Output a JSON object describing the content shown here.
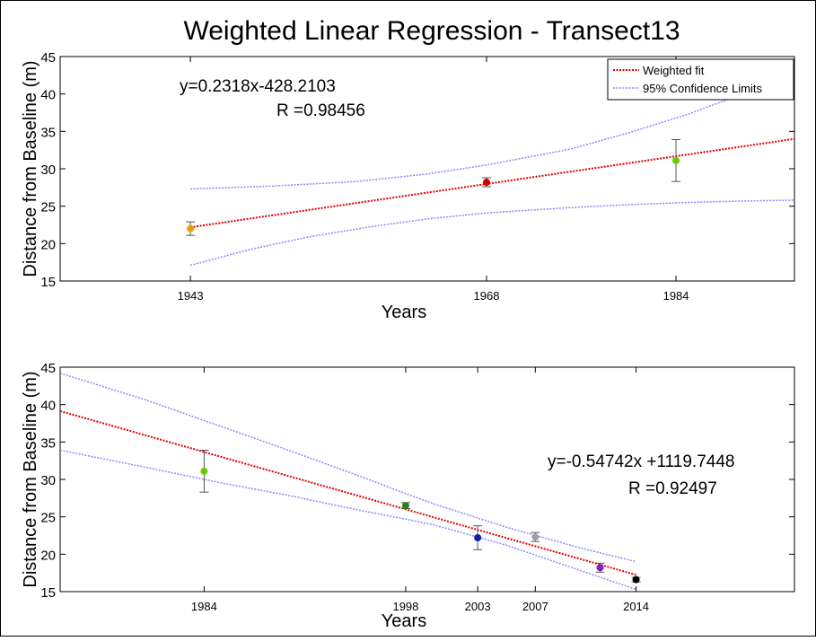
{
  "figure": {
    "title": "Weighted Linear Regression - Transect13"
  },
  "chart_data": [
    {
      "type": "scatter",
      "title": "Weighted Linear Regression - Transect13",
      "xlabel": "Years",
      "ylabel": "Distance from Baseline (m)",
      "xlim": [
        1932,
        1994
      ],
      "ylim": [
        15,
        45
      ],
      "xticks": [
        1943,
        1968,
        1984
      ],
      "yticks": [
        15,
        20,
        25,
        30,
        35,
        40,
        45
      ],
      "grid": false,
      "legend": {
        "placement": "top-right",
        "entries": [
          "Weighted fit",
          "95% Confidence Limits"
        ]
      },
      "equation_text": "y=0.2318x-428.2103",
      "r_text": "R =0.98456",
      "points": [
        {
          "x": 1943,
          "y": 22.0,
          "err": 0.9,
          "color": "#e8a000"
        },
        {
          "x": 1968,
          "y": 28.2,
          "err": 0.6,
          "color": "#d40000"
        },
        {
          "x": 1984,
          "y": 31.1,
          "err": 2.8,
          "color": "#66cc00"
        }
      ],
      "fit": {
        "slope": 0.2318,
        "intercept": -428.2103,
        "x": [
          1943,
          1994
        ],
        "color": "#e00000"
      },
      "confidence_limits": {
        "color": "#8888ff",
        "upper": [
          [
            1943,
            27.3
          ],
          [
            1950,
            27.7
          ],
          [
            1957,
            28.3
          ],
          [
            1963,
            29.3
          ],
          [
            1968,
            30.5
          ],
          [
            1975,
            32.6
          ],
          [
            1980,
            34.8
          ],
          [
            1985,
            37.3
          ],
          [
            1990,
            40.2
          ],
          [
            1994,
            42.3
          ]
        ],
        "lower": [
          [
            1943,
            17.1
          ],
          [
            1948,
            19.2
          ],
          [
            1953,
            20.9
          ],
          [
            1958,
            22.2
          ],
          [
            1963,
            23.3
          ],
          [
            1968,
            24.1
          ],
          [
            1975,
            24.8
          ],
          [
            1980,
            25.2
          ],
          [
            1985,
            25.5
          ],
          [
            1990,
            25.7
          ],
          [
            1994,
            25.8
          ]
        ]
      }
    },
    {
      "type": "scatter",
      "xlabel": "Years",
      "ylabel": "Distance from Baseline (m)",
      "xlim": [
        1974,
        2025
      ],
      "ylim": [
        15,
        45
      ],
      "xticks": [
        1984,
        1998,
        2003,
        2007,
        2014
      ],
      "yticks": [
        15,
        20,
        25,
        30,
        35,
        40,
        45
      ],
      "grid": false,
      "equation_text": "y=-0.54742x +1119.7448",
      "r_text": "R =0.92497",
      "points": [
        {
          "x": 1984,
          "y": 31.1,
          "err": 2.8,
          "color": "#66cc00"
        },
        {
          "x": 1998,
          "y": 26.5,
          "err": 0.4,
          "color": "#2e7d1e"
        },
        {
          "x": 2003,
          "y": 22.2,
          "err": 1.6,
          "color": "#1020a0"
        },
        {
          "x": 2007,
          "y": 22.3,
          "err": 0.6,
          "color": "#a0a0a0"
        },
        {
          "x": 2011.5,
          "y": 18.2,
          "err": 0.6,
          "color": "#8020c0"
        },
        {
          "x": 2014,
          "y": 16.6,
          "err": 0.3,
          "color": "#000000"
        }
      ],
      "fit": {
        "slope": -0.54742,
        "intercept": 1119.7448,
        "x": [
          1974,
          2014
        ],
        "color": "#e00000"
      },
      "confidence_limits": {
        "color": "#8888ff",
        "upper": [
          [
            1974,
            44.2
          ],
          [
            1980,
            40.6
          ],
          [
            1985,
            37.2
          ],
          [
            1990,
            33.8
          ],
          [
            1995,
            30.3
          ],
          [
            1998,
            28.1
          ],
          [
            2000,
            26.7
          ],
          [
            2005,
            23.6
          ],
          [
            2010,
            20.9
          ],
          [
            2014,
            19.0
          ]
        ],
        "lower": [
          [
            1974,
            33.9
          ],
          [
            1980,
            31.6
          ],
          [
            1985,
            29.6
          ],
          [
            1990,
            27.8
          ],
          [
            1995,
            25.8
          ],
          [
            1998,
            24.7
          ],
          [
            2000,
            23.9
          ],
          [
            2005,
            21.2
          ],
          [
            2010,
            17.9
          ],
          [
            2014,
            15.3
          ]
        ]
      }
    }
  ]
}
